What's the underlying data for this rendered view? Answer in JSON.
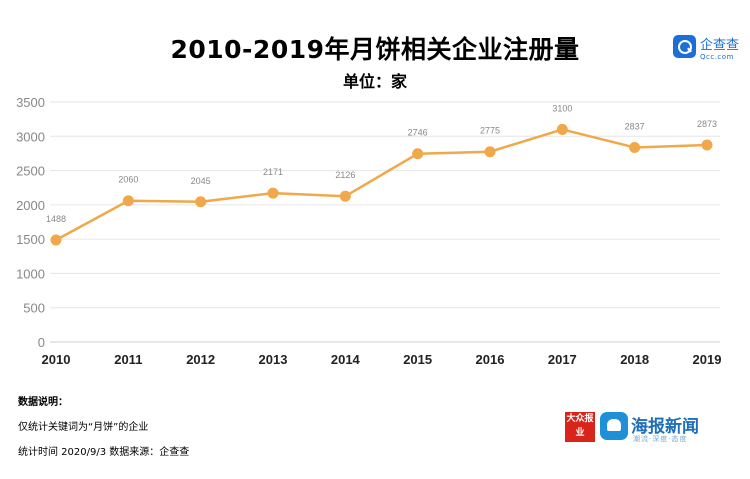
{
  "chart_data": {
    "type": "line",
    "title": "2010-2019年月饼相关企业注册量",
    "subtitle": "单位：家",
    "categories": [
      "2010",
      "2011",
      "2012",
      "2013",
      "2014",
      "2015",
      "2016",
      "2017",
      "2018",
      "2019"
    ],
    "values": [
      1488,
      2060,
      2045,
      2171,
      2126,
      2746,
      2775,
      3100,
      2837,
      2873
    ],
    "ylim": [
      0,
      3500
    ],
    "yticks": [
      0,
      500,
      1000,
      1500,
      2000,
      2500,
      3000,
      3500
    ],
    "grid": true,
    "line_color": "#f0a84a"
  },
  "logo_qcc": {
    "name": "企查查",
    "domain": "Qcc.com"
  },
  "notes": {
    "heading": "数据说明：",
    "line1": "仅统计关键词为“月饼”的企业",
    "line2": "统计时间 2020/9/3    数据来源：企查查"
  },
  "logos": {
    "dazhong": "大众报业",
    "haibao": "海报新闻",
    "haibao_sub": "潮流·深度·态度"
  }
}
